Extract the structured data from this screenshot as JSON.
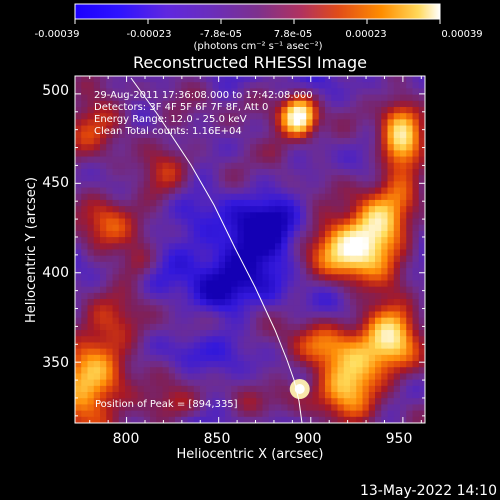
{
  "chart_data": {
    "type": "heatmap",
    "title": "Reconstructed RHESSI Image",
    "xlabel": "Heliocentric X (arcsec)",
    "ylabel": "Heliocentric Y (arcsec)",
    "x_ticks": [
      "800",
      "850",
      "900",
      "950"
    ],
    "y_ticks": [
      "350",
      "400",
      "450",
      "500"
    ],
    "xlim": [
      772,
      962
    ],
    "ylim": [
      316,
      510
    ],
    "colorbar": {
      "ticks": [
        "-0.00039",
        "-0.00023",
        "-7.8e-05",
        "7.8e-05",
        "0.00023",
        "0.00039"
      ],
      "unit_label": "(photons cm⁻² s⁻¹ asec⁻²)",
      "range": [
        -0.00039,
        0.00039
      ]
    },
    "annotations": [
      "29-Aug-2011 17:36:08.000 to 17:42:08.000",
      "Detectors: 3F 4F 5F 6F 7F 8F, Att 0",
      "Energy Range: 12.0 - 25.0 keV",
      "Clean    Total counts: 1.16E+04"
    ],
    "peak_label": "Position of Peak = [894,335]",
    "peak": [
      894,
      335
    ]
  },
  "footer": {
    "timestamp": "13-May-2022 14:10"
  }
}
